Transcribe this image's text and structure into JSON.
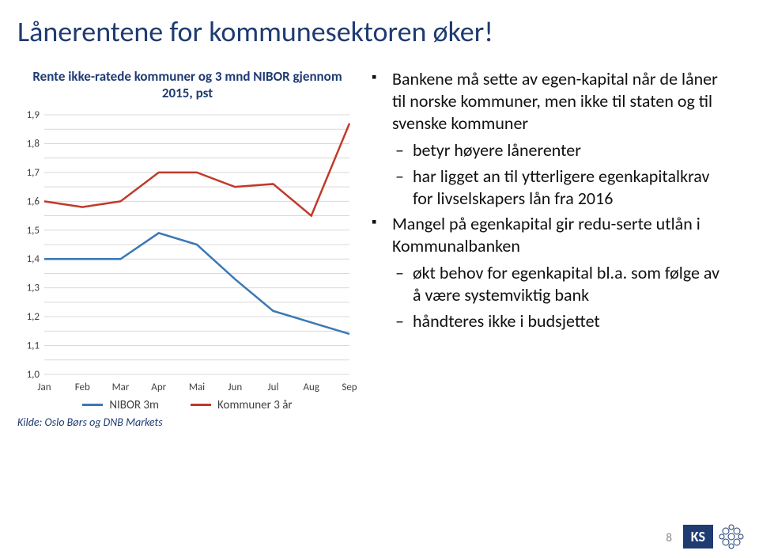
{
  "title": "Lånerentene for kommunesektoren øker!",
  "chart": {
    "type": "line",
    "title": "Rente ikke-ratede kommuner og 3 mnd NIBOR gjennom 2015, pst",
    "categories": [
      "Jan",
      "Feb",
      "Mar",
      "Apr",
      "Mai",
      "Jun",
      "Jul",
      "Aug",
      "Sep"
    ],
    "ylim": [
      1.0,
      1.9
    ],
    "ytick_step_major": 0.1,
    "y_decimals": 1,
    "gridline_step_minor": 0.05,
    "grid_color": "#d9d9d9",
    "background": "#ffffff",
    "series": [
      {
        "name": "NIBOR 3m",
        "color": "#3b78b5",
        "values": [
          1.4,
          1.4,
          1.4,
          1.49,
          1.45,
          1.33,
          1.22,
          1.18,
          1.14
        ]
      },
      {
        "name": "Kommuner 3 år",
        "color": "#c0392b",
        "values": [
          1.6,
          1.58,
          1.6,
          1.7,
          1.7,
          1.65,
          1.66,
          1.55,
          1.87
        ]
      }
    ],
    "label_fontsize": 13,
    "title_fontsize": 17,
    "line_width": 2.5,
    "source": "Kilde: Oslo Børs og DNB Markets"
  },
  "bullets": [
    {
      "text": "Bankene må sette av egen-kapital når de låner til norske kommuner, men ikke til staten og til svenske kommuner",
      "sub": [
        "betyr høyere lånerenter",
        "har ligget an til ytterligere egenkapitalkrav for livselskapers lån fra 2016"
      ]
    },
    {
      "text": "Mangel på egenkapital gir redu-serte utlån i Kommunalbanken",
      "sub": [
        "økt behov for egenkapital bl.a. som følge av å være systemviktig bank",
        "håndteres ikke i budsjettet"
      ]
    }
  ],
  "page_number": "8",
  "logo_text": "KS",
  "colors": {
    "title": "#1f3b72",
    "logo_bg": "#1f3b72",
    "logo_fg": "#ffffff"
  }
}
